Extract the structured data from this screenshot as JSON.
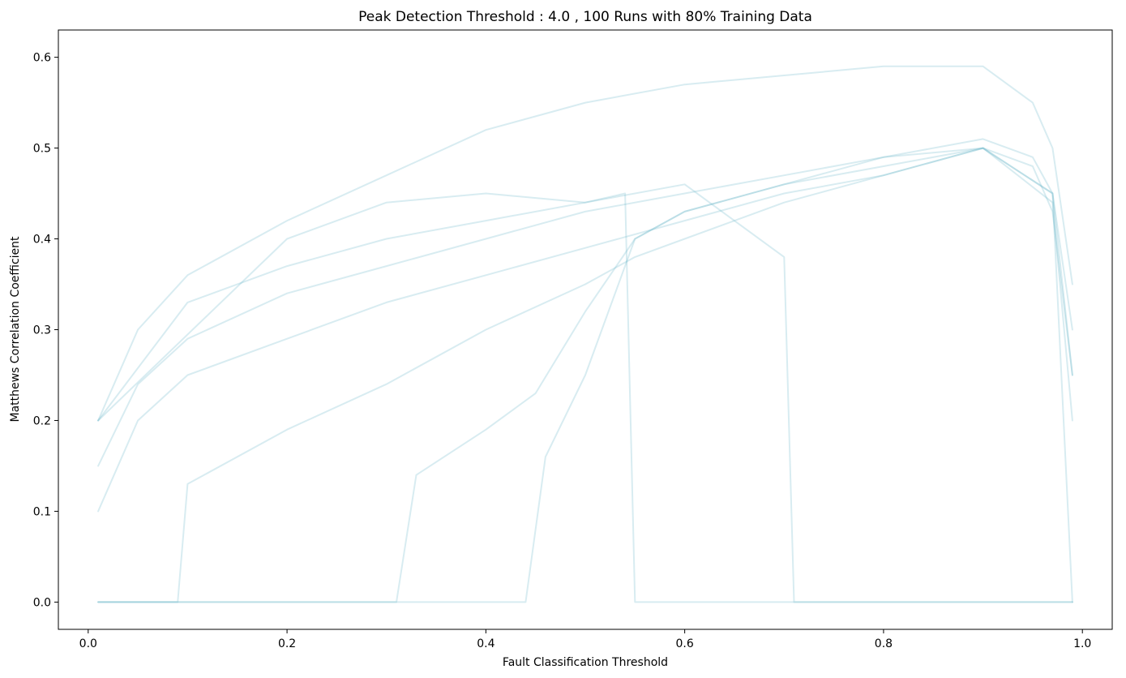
{
  "chart_data": {
    "type": "line",
    "title": "Peak Detection Threshold : 4.0 , 100 Runs with 80% Training Data",
    "xlabel": "Fault Classification Threshold",
    "ylabel": "Matthews Correlation Coefficient",
    "xlim": [
      -0.03,
      1.03
    ],
    "ylim": [
      -0.03,
      0.63
    ],
    "xticks": [
      0.0,
      0.2,
      0.4,
      0.6,
      0.8,
      1.0
    ],
    "xtick_labels": [
      "0.0",
      "0.2",
      "0.4",
      "0.6",
      "0.8",
      "1.0"
    ],
    "yticks": [
      0.0,
      0.1,
      0.2,
      0.3,
      0.4,
      0.5,
      0.6
    ],
    "ytick_labels": [
      "0.0",
      "0.1",
      "0.2",
      "0.3",
      "0.4",
      "0.5",
      "0.6"
    ],
    "grid": false,
    "legend": "none",
    "line_color": "#62b2c8",
    "line_alpha": 0.25,
    "x_range": [
      0.01,
      0.99
    ],
    "representative_series": [
      {
        "x": [
          0.01,
          0.05,
          0.1,
          0.2,
          0.3,
          0.4,
          0.5,
          0.6,
          0.7,
          0.8,
          0.9,
          0.95,
          0.97,
          0.99
        ],
        "y": [
          0.1,
          0.2,
          0.25,
          0.29,
          0.33,
          0.36,
          0.39,
          0.42,
          0.45,
          0.47,
          0.5,
          0.48,
          0.43,
          0.25
        ]
      },
      {
        "x": [
          0.01,
          0.05,
          0.1,
          0.2,
          0.3,
          0.4,
          0.5,
          0.6,
          0.7,
          0.8,
          0.9,
          0.95,
          0.97,
          0.99
        ],
        "y": [
          0.2,
          0.3,
          0.36,
          0.42,
          0.47,
          0.52,
          0.55,
          0.57,
          0.58,
          0.59,
          0.59,
          0.55,
          0.5,
          0.35
        ]
      },
      {
        "x": [
          0.01,
          0.05,
          0.1,
          0.2,
          0.3,
          0.4,
          0.5,
          0.6,
          0.7,
          0.8,
          0.9,
          0.95,
          0.97,
          0.99
        ],
        "y": [
          0.15,
          0.24,
          0.29,
          0.34,
          0.37,
          0.4,
          0.43,
          0.45,
          0.47,
          0.49,
          0.51,
          0.49,
          0.45,
          0.3
        ]
      },
      {
        "x": [
          0.01,
          0.09,
          0.1,
          0.2,
          0.3,
          0.4,
          0.5,
          0.55,
          0.6,
          0.7,
          0.8,
          0.9,
          0.97,
          0.99
        ],
        "y": [
          0.0,
          0.0,
          0.13,
          0.19,
          0.24,
          0.3,
          0.35,
          0.38,
          0.4,
          0.44,
          0.47,
          0.5,
          0.44,
          0.2
        ]
      },
      {
        "x": [
          0.01,
          0.31,
          0.33,
          0.4,
          0.45,
          0.5,
          0.55,
          0.6,
          0.7,
          0.8,
          0.9,
          0.97,
          0.99
        ],
        "y": [
          0.0,
          0.0,
          0.14,
          0.19,
          0.23,
          0.32,
          0.4,
          0.43,
          0.46,
          0.49,
          0.5,
          0.45,
          0.25
        ]
      },
      {
        "x": [
          0.01,
          0.44,
          0.46,
          0.5,
          0.55,
          0.6,
          0.7,
          0.8,
          0.9,
          0.97,
          0.99
        ],
        "y": [
          0.0,
          0.0,
          0.16,
          0.25,
          0.4,
          0.43,
          0.46,
          0.48,
          0.5,
          0.45,
          0.0
        ]
      },
      {
        "x": [
          0.01,
          0.2,
          0.3,
          0.4,
          0.5,
          0.54,
          0.55,
          0.99
        ],
        "y": [
          0.2,
          0.4,
          0.44,
          0.45,
          0.44,
          0.45,
          0.0,
          0.0
        ]
      },
      {
        "x": [
          0.01,
          0.1,
          0.2,
          0.3,
          0.4,
          0.5,
          0.6,
          0.7,
          0.71,
          0.99
        ],
        "y": [
          0.2,
          0.33,
          0.37,
          0.4,
          0.42,
          0.44,
          0.46,
          0.38,
          0.0,
          0.0
        ]
      }
    ]
  }
}
